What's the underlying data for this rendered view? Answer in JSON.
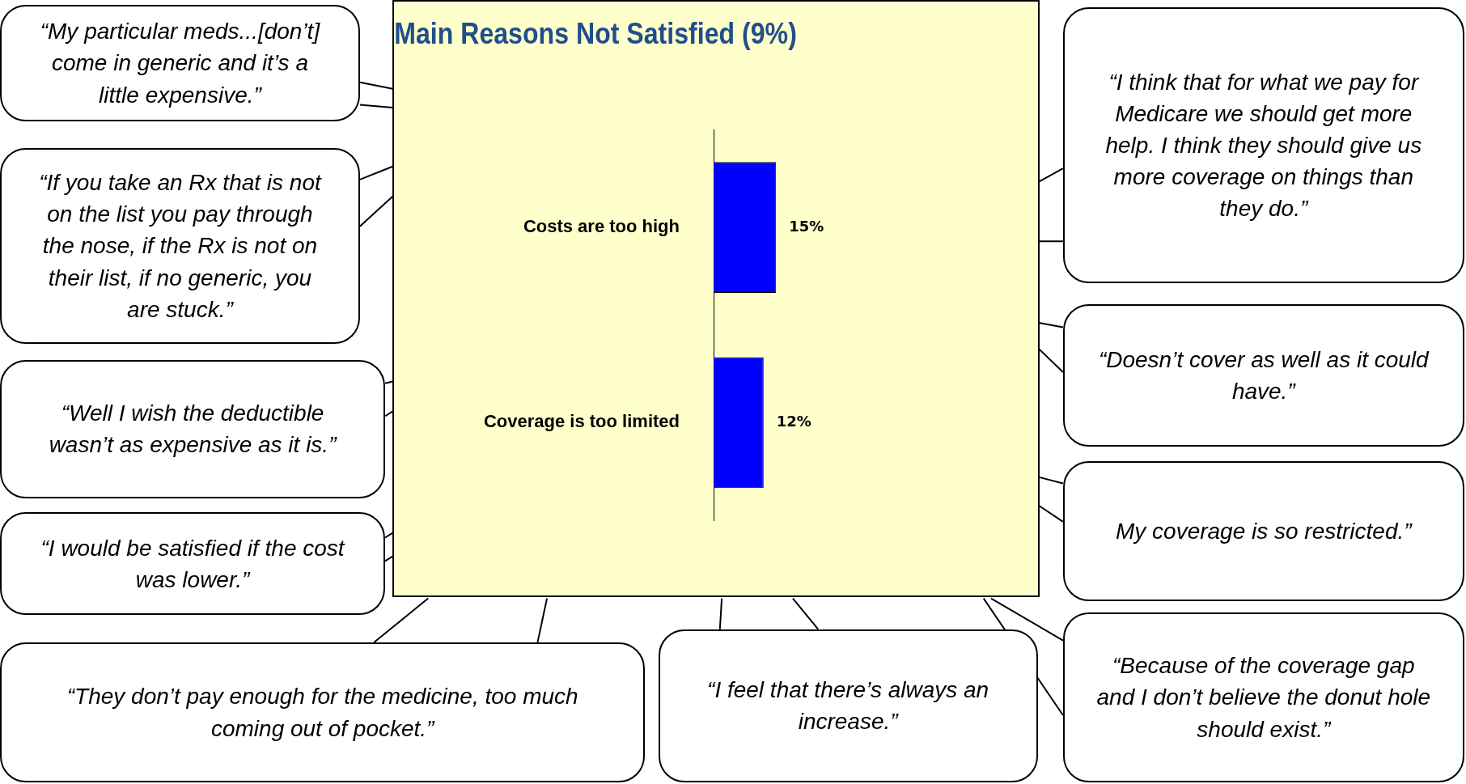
{
  "chart_data": {
    "type": "bar",
    "orientation": "horizontal",
    "title": "Main Reasons Not Satisfied (9%)",
    "categories": [
      "Costs are too high",
      "Coverage is too limited"
    ],
    "values": [
      15,
      12
    ],
    "color": "#0000ff",
    "value_labels": [
      "15%",
      "12%"
    ],
    "legend": false,
    "tick_labels": "y",
    "annotations": [
      "“My particular meds...[don’t] come in generic and it’s a little expensive.”",
      "“If you take an Rx that is not on the list you pay through the nose, if the Rx is not on their list, if no generic, you are stuck.”",
      "“Well I wish the deductible wasn’t as expensive as it is.”",
      "“I would be satisfied if the cost was lower.”",
      "“They don’t pay enough for the medicine, too much coming out of pocket.”",
      "“I feel that there’s always an increase.”",
      "“Because of the coverage gap and I don’t believe the donut hole should exist.”",
      "“I think that for what we pay for Medicare we should get more help.  I think they should give us more coverage on things than they do.”",
      "“Doesn’t cover as well as it could have.”",
      "My coverage is so restricted.”"
    ]
  }
}
